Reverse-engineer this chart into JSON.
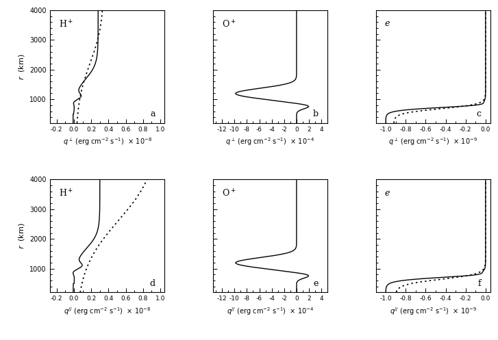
{
  "fig_width": 7.27,
  "fig_height": 4.97,
  "r_min": 200,
  "r_max": 4000,
  "yticks": [
    1000,
    2000,
    3000,
    4000
  ],
  "panels": [
    {
      "label": "a",
      "species": "H$^+$",
      "xlabel": "$q^\\perp$ (erg cm$^{-2}$ s$^{-1}$)  $\\times$ 10$^{-8}$",
      "xlim": [
        -0.28,
        1.05
      ],
      "xticks": [
        -0.2,
        0.0,
        0.2,
        0.4,
        0.6,
        0.8,
        1.0
      ],
      "xticklabels": [
        "-0.2",
        "0.0",
        "0.2",
        "0.4",
        "0.6",
        "0.8",
        "1.0"
      ],
      "row": 0,
      "col": 0,
      "has_dotted": true
    },
    {
      "label": "b",
      "species": "O$^+$",
      "xlabel": "$q^\\perp$ (erg cm$^{-2}$ s$^{-1}$)  $\\times$ 10$^{-4}$",
      "xlim": [
        -13.5,
        5.0
      ],
      "xticks": [
        -12,
        -10,
        -8,
        -6,
        -4,
        -2,
        0,
        2,
        4
      ],
      "xticklabels": [
        "-12",
        "-10",
        "-8",
        "-6",
        "-4",
        "-2",
        "0",
        "2",
        "4"
      ],
      "row": 0,
      "col": 1,
      "has_dotted": false
    },
    {
      "label": "c",
      "species": "e",
      "xlabel": "$q^\\perp$ (erg cm$^{-2}$ s$^{-1}$)  $\\times$ 10$^{-9}$",
      "xlim": [
        -1.1,
        0.05
      ],
      "xticks": [
        -1.0,
        -0.8,
        -0.6,
        -0.4,
        -0.2,
        0.0
      ],
      "xticklabels": [
        "-1.0",
        "-0.8",
        "-0.6",
        "-0.4",
        "-0.2",
        "0.0"
      ],
      "row": 0,
      "col": 2,
      "has_dotted": true
    },
    {
      "label": "d",
      "species": "H$^+$",
      "xlabel": "$q^{//}$ (erg cm$^{-2}$ s$^{-1}$)  $\\times$ 10$^{-8}$",
      "xlim": [
        -0.28,
        1.05
      ],
      "xticks": [
        -0.2,
        0.0,
        0.2,
        0.4,
        0.6,
        0.8,
        1.0
      ],
      "xticklabels": [
        "-0.2",
        "0.0",
        "0.2",
        "0.4",
        "0.6",
        "0.8",
        "1.0"
      ],
      "row": 1,
      "col": 0,
      "has_dotted": true
    },
    {
      "label": "e",
      "species": "O$^+$",
      "xlabel": "$q^{//}$ (erg cm$^{-2}$ s$^{-1}$)  $\\times$ 10$^{-4}$",
      "xlim": [
        -13.5,
        5.0
      ],
      "xticks": [
        -12,
        -10,
        -8,
        -6,
        -4,
        -2,
        0,
        2,
        4
      ],
      "xticklabels": [
        "-12",
        "-10",
        "-8",
        "-6",
        "-4",
        "-2",
        "0",
        "2",
        "4"
      ],
      "row": 1,
      "col": 1,
      "has_dotted": false
    },
    {
      "label": "f",
      "species": "e",
      "xlabel": "$q^{//}$ (erg cm$^{-2}$ s$^{-1}$)  $\\times$ 10$^{-9}$",
      "xlim": [
        -1.1,
        0.05
      ],
      "xticks": [
        -1.0,
        -0.8,
        -0.6,
        -0.4,
        -0.2,
        0.0
      ],
      "xticklabels": [
        "-1.0",
        "-0.8",
        "-0.6",
        "-0.4",
        "-0.2",
        "0.0"
      ],
      "row": 1,
      "col": 2,
      "has_dotted": true
    }
  ]
}
